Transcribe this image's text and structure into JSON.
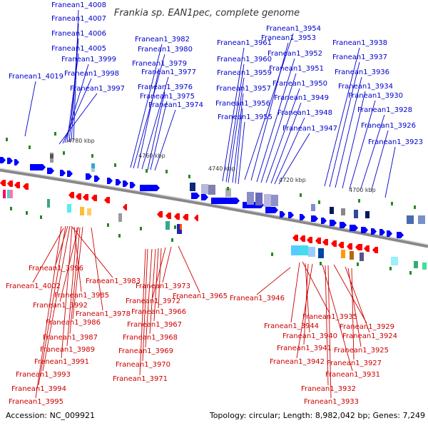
{
  "title": "Frankia sp. EAN1pec, complete genome",
  "accession": "Accession: NC_009921",
  "topology": "Topology: circular; Length: 8,982,042 bp; Genes: 7,249",
  "kbp_ticks": [
    "4780 kbp",
    "4760 kbp",
    "4740 kbp",
    "4720 kbp",
    "4700 kbp"
  ],
  "colors": {
    "forward": "#0000ff",
    "reverse": "#ff0000",
    "axis": "#888888",
    "tick": "#008000"
  },
  "top_genes": [
    "Franean1_4008",
    "Franean1_4007",
    "Franean1_4006",
    "Franean1_4005",
    "Franean1_3999",
    "Franean1_3998",
    "Franean1_4019",
    "Franean1_3997",
    "Franean1_3982",
    "Franean1_3980",
    "Franean1_3979",
    "Franean1_3977",
    "Franean1_3976",
    "Franean1_3975",
    "Franean1_3974",
    "Franean1_3954",
    "Franean1_3953",
    "Franean1_3961",
    "Franean1_3952",
    "Franean1_3960",
    "Franean1_3951",
    "Franean1_3959",
    "Franean1_3950",
    "Franean1_3957",
    "Franean1_3949",
    "Franean1_3956",
    "Franean1_3948",
    "Franean1_3955",
    "Franean1_3947",
    "Franean1_3938",
    "Franean1_3937",
    "Franean1_3936",
    "Franean1_3934",
    "Franean1_3930",
    "Franean1_3928",
    "Franean1_3926",
    "Franean1_3923"
  ],
  "bottom_genes": [
    "Franean1_3996",
    "Franean1_4002",
    "Franean1_3983",
    "Franean1_3985",
    "Franean1_3992",
    "Franean1_3978",
    "Franean1_3986",
    "Franean1_3987",
    "Franean1_3989",
    "Franean1_3991",
    "Franean1_3993",
    "Franean1_3994",
    "Franean1_3995",
    "Franean1_3973",
    "Franean1_3965",
    "Franean1_3972",
    "Franean1_3966",
    "Franean1_3967",
    "Franean1_3968",
    "Franean1_3969",
    "Franean1_3970",
    "Franean1_3971",
    "Franean1_3946",
    "Franean1_3935",
    "Franean1_3944",
    "Franean1_3929",
    "Franean1_3940",
    "Franean1_3924",
    "Franean1_3941",
    "Franean1_3925",
    "Franean1_3942",
    "Franean1_3927",
    "Franean1_3931",
    "Franean1_3932",
    "Franean1_3933"
  ]
}
